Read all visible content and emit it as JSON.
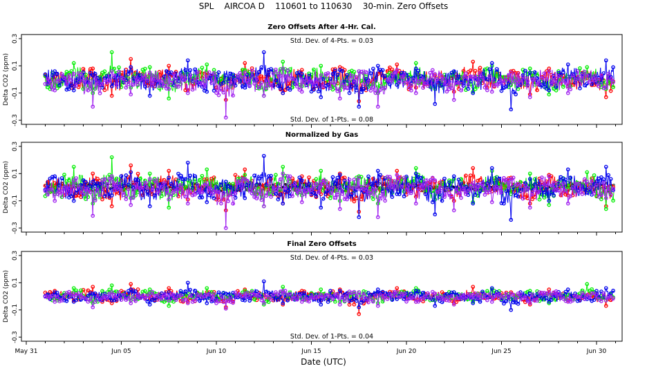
{
  "figure": {
    "title": "SPL    AIRCOA D    110601 to 110630    30-min. Zero Offsets",
    "xlabel": "Date (UTC)"
  },
  "colors": {
    "series_a": "#ff0000",
    "series_b": "#00ee00",
    "series_c": "#0000ee",
    "series_d": "#a020f0",
    "normalized_marker": "#000000"
  },
  "chart_data": [
    {
      "type": "scatter",
      "title": "Zero Offsets After 4-Hr. Cal.",
      "ylabel": "Delta CO2 (ppm)",
      "ylim": [
        -0.33,
        0.33
      ],
      "yticks": [
        "-0.3",
        "-0.1",
        "0.1",
        "0.3"
      ],
      "grid": false,
      "annotations": [
        "Std. Dev. of 4-Pts. =  0.03",
        "Std. Dev. of 1-Pts. =  0.08"
      ],
      "series": [
        {
          "color": "#ff0000",
          "values": [
            0.02,
            -0.05,
            0.08,
            -0.12,
            0.15,
            -0.03,
            0.1,
            -0.08,
            0.05,
            -0.15,
            0.12,
            0.0,
            -0.1,
            0.07,
            -0.04,
            0.09,
            -0.16,
            0.04,
            0.11,
            -0.06,
            0.03,
            -0.09,
            0.13,
            -0.02,
            0.06,
            -0.11,
            0.08,
            -0.05,
            0.01,
            -0.13
          ]
        },
        {
          "color": "#00ee00",
          "values": [
            -0.04,
            0.12,
            -0.1,
            0.2,
            -0.06,
            0.09,
            -0.14,
            0.04,
            0.11,
            -0.02,
            0.07,
            -0.12,
            0.13,
            -0.05,
            0.1,
            -0.08,
            0.06,
            -0.1,
            0.03,
            0.12,
            -0.07,
            0.05,
            -0.09,
            0.1,
            -0.04,
            0.08,
            -0.11,
            0.02,
            0.09,
            -0.07
          ]
        },
        {
          "color": "#0000ee",
          "values": [
            0.06,
            -0.08,
            0.03,
            -0.05,
            0.09,
            -0.12,
            0.05,
            0.14,
            -0.09,
            0.03,
            -0.06,
            0.2,
            -0.1,
            0.04,
            -0.13,
            0.07,
            -0.2,
            0.1,
            -0.04,
            0.08,
            -0.18,
            0.06,
            -0.1,
            0.12,
            -0.22,
            0.05,
            -0.08,
            0.11,
            -0.03,
            0.14
          ]
        },
        {
          "color": "#a020f0",
          "values": [
            -0.08,
            0.04,
            -0.2,
            0.06,
            -0.11,
            0.05,
            -0.07,
            -0.1,
            0.02,
            -0.28,
            0.05,
            -0.12,
            0.08,
            -0.09,
            0.03,
            -0.14,
            0.06,
            -0.2,
            0.07,
            -0.1,
            0.04,
            -0.15,
            0.02,
            -0.09,
            0.05,
            -0.13,
            0.06,
            -0.1,
            0.03,
            -0.06
          ]
        }
      ]
    },
    {
      "type": "scatter",
      "title": "Normalized by Gas",
      "ylabel": "Delta CO2 (ppm)",
      "ylim": [
        -0.33,
        0.33
      ],
      "yticks": [
        "-0.3",
        "-0.1",
        "0.1",
        "0.3"
      ],
      "grid": false,
      "annotations": [],
      "series": [
        {
          "color": "#ff0000",
          "values": [
            0.03,
            -0.07,
            0.1,
            -0.14,
            0.16,
            -0.04,
            0.12,
            -0.09,
            0.06,
            -0.17,
            0.13,
            0.01,
            -0.12,
            0.08,
            -0.05,
            0.1,
            -0.18,
            0.05,
            0.12,
            -0.07,
            0.04,
            -0.1,
            0.14,
            -0.03,
            0.07,
            -0.12,
            0.09,
            -0.06,
            0.02,
            -0.14
          ]
        },
        {
          "color": "#00ee00",
          "values": [
            -0.05,
            0.15,
            -0.12,
            0.22,
            -0.08,
            0.1,
            -0.15,
            0.05,
            0.13,
            -0.03,
            0.09,
            -0.14,
            0.15,
            -0.06,
            0.12,
            -0.1,
            0.08,
            -0.12,
            0.04,
            0.14,
            -0.09,
            0.06,
            -0.11,
            0.12,
            -0.05,
            0.1,
            -0.13,
            0.03,
            0.11,
            -0.16
          ]
        },
        {
          "color": "#0000ee",
          "values": [
            0.08,
            -0.1,
            0.04,
            -0.06,
            0.11,
            -0.14,
            0.07,
            0.18,
            -0.11,
            0.04,
            -0.08,
            0.23,
            -0.12,
            0.05,
            -0.15,
            0.09,
            -0.22,
            0.12,
            -0.05,
            0.1,
            -0.2,
            0.08,
            -0.12,
            0.14,
            -0.24,
            0.06,
            -0.1,
            0.13,
            -0.04,
            0.15
          ]
        },
        {
          "color": "#a020f0",
          "values": [
            -0.1,
            0.05,
            -0.21,
            0.08,
            -0.13,
            0.06,
            -0.09,
            -0.12,
            0.03,
            -0.3,
            0.06,
            -0.14,
            0.1,
            -0.11,
            0.04,
            -0.16,
            0.07,
            -0.22,
            0.09,
            -0.12,
            0.05,
            -0.17,
            0.03,
            -0.11,
            0.06,
            -0.15,
            0.08,
            -0.12,
            0.04,
            -0.08
          ]
        },
        {
          "color": "#000000",
          "values": [
            0.0,
            0.0,
            0.0,
            0.0,
            0.0,
            0.0,
            0.0,
            0.0,
            0.0,
            0.0,
            0.0,
            0.0,
            0.0,
            0.0,
            0.0,
            0.0,
            0.0,
            0.0,
            0.0,
            0.0,
            0.0,
            0.0,
            0.0,
            0.0,
            0.0,
            0.0,
            0.0,
            0.0,
            0.0,
            0.0
          ]
        }
      ]
    },
    {
      "type": "scatter",
      "title": "Final Zero Offsets",
      "ylabel": "Delta CO2 (ppm)",
      "ylim": [
        -0.33,
        0.33
      ],
      "yticks": [
        "-0.3",
        "-0.1",
        "0.1",
        "0.3"
      ],
      "xticks": [
        "May 31",
        "Jun 05",
        "Jun 10",
        "Jun 15",
        "Jun 20",
        "Jun 25",
        "Jun 30"
      ],
      "xlim": [
        "2011-05-31",
        "2011-07-01"
      ],
      "grid": false,
      "annotations": [
        "Std. Dev. of 4-Pts. =  0.03",
        "Std. Dev. of 1-Pts. =  0.04"
      ],
      "series": [
        {
          "color": "#ff0000",
          "values": [
            0.04,
            -0.03,
            0.07,
            -0.05,
            0.09,
            -0.02,
            0.06,
            -0.04,
            0.03,
            -0.08,
            0.05,
            0.01,
            -0.06,
            0.04,
            -0.03,
            0.05,
            -0.13,
            0.02,
            0.06,
            -0.04,
            0.02,
            -0.05,
            0.07,
            -0.01,
            0.03,
            -0.06,
            0.05,
            -0.03,
            0.01,
            -0.07
          ]
        },
        {
          "color": "#00ee00",
          "values": [
            -0.02,
            0.06,
            -0.05,
            0.08,
            -0.03,
            0.05,
            -0.07,
            0.02,
            0.06,
            -0.01,
            0.04,
            -0.06,
            0.07,
            -0.02,
            0.05,
            -0.04,
            0.03,
            -0.05,
            0.02,
            0.06,
            -0.03,
            0.03,
            -0.04,
            0.05,
            -0.02,
            0.04,
            -0.05,
            0.01,
            0.09,
            -0.03
          ]
        },
        {
          "color": "#0000ee",
          "values": [
            0.03,
            -0.04,
            0.02,
            -0.03,
            0.05,
            -0.06,
            0.03,
            0.1,
            -0.05,
            0.02,
            -0.03,
            0.11,
            -0.05,
            0.02,
            -0.06,
            0.04,
            -0.08,
            0.05,
            -0.02,
            0.04,
            -0.07,
            0.03,
            -0.05,
            0.06,
            -0.1,
            0.02,
            -0.04,
            0.05,
            -0.02,
            0.06
          ]
        },
        {
          "color": "#a020f0",
          "values": [
            -0.04,
            0.02,
            -0.08,
            0.03,
            -0.05,
            0.02,
            -0.03,
            -0.05,
            0.01,
            -0.09,
            0.02,
            -0.05,
            0.04,
            -0.04,
            0.01,
            -0.06,
            0.03,
            -0.07,
            0.03,
            -0.04,
            0.02,
            -0.06,
            0.01,
            -0.04,
            0.02,
            -0.05,
            0.03,
            -0.04,
            0.01,
            -0.03
          ]
        }
      ]
    }
  ]
}
